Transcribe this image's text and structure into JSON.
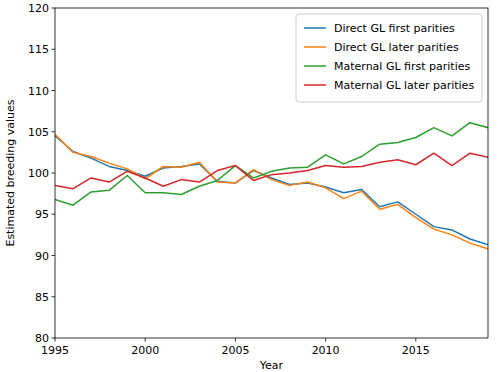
{
  "chart_data": {
    "type": "line",
    "x_label": "Year",
    "y_label": "Estimated breeding values",
    "x": [
      1995,
      1996,
      1997,
      1998,
      1999,
      2000,
      2001,
      2002,
      2003,
      2004,
      2005,
      2006,
      2007,
      2008,
      2009,
      2010,
      2011,
      2012,
      2013,
      2014,
      2015,
      2016,
      2017,
      2018,
      2019
    ],
    "series": [
      {
        "name": "Direct GL first parities",
        "color": "#1f77b4",
        "values": [
          104.5,
          102.6,
          101.8,
          100.8,
          100.3,
          99.6,
          100.6,
          100.8,
          101.1,
          99.0,
          98.8,
          100.3,
          99.4,
          98.6,
          98.8,
          98.3,
          97.6,
          98.0,
          95.9,
          96.5,
          95.0,
          93.5,
          93.1,
          92.0,
          91.3
        ]
      },
      {
        "name": "Direct GL later parities",
        "color": "#ff7f0e",
        "values": [
          104.7,
          102.5,
          102.0,
          101.2,
          100.5,
          99.3,
          100.8,
          100.7,
          101.3,
          98.9,
          98.8,
          100.4,
          99.2,
          98.5,
          98.9,
          98.2,
          96.9,
          97.8,
          95.6,
          96.2,
          94.6,
          93.2,
          92.5,
          91.5,
          90.8
        ]
      },
      {
        "name": "Maternal GL first parities",
        "color": "#2ca02c",
        "values": [
          96.8,
          96.1,
          97.7,
          97.9,
          99.7,
          97.6,
          97.6,
          97.4,
          98.4,
          99.1,
          100.9,
          99.4,
          100.2,
          100.6,
          100.7,
          102.2,
          101.1,
          102.0,
          103.5,
          103.7,
          104.3,
          105.5,
          104.5,
          106.1,
          105.5
        ]
      },
      {
        "name": "Maternal GL later parities",
        "color": "#d62728",
        "values": [
          98.5,
          98.1,
          99.4,
          98.9,
          100.2,
          99.4,
          98.4,
          99.2,
          98.9,
          100.3,
          100.9,
          99.1,
          99.8,
          100.0,
          100.3,
          100.9,
          100.7,
          100.8,
          101.3,
          101.6,
          101.0,
          102.4,
          100.9,
          102.4,
          101.9
        ]
      }
    ],
    "xlim": [
      1995,
      2019
    ],
    "xticks": [
      1995,
      2000,
      2005,
      2010,
      2015
    ],
    "ylim": [
      80,
      120
    ],
    "yticks": [
      80,
      85,
      90,
      95,
      100,
      105,
      110,
      115,
      120
    ],
    "legend": "upper right",
    "grid": false
  }
}
